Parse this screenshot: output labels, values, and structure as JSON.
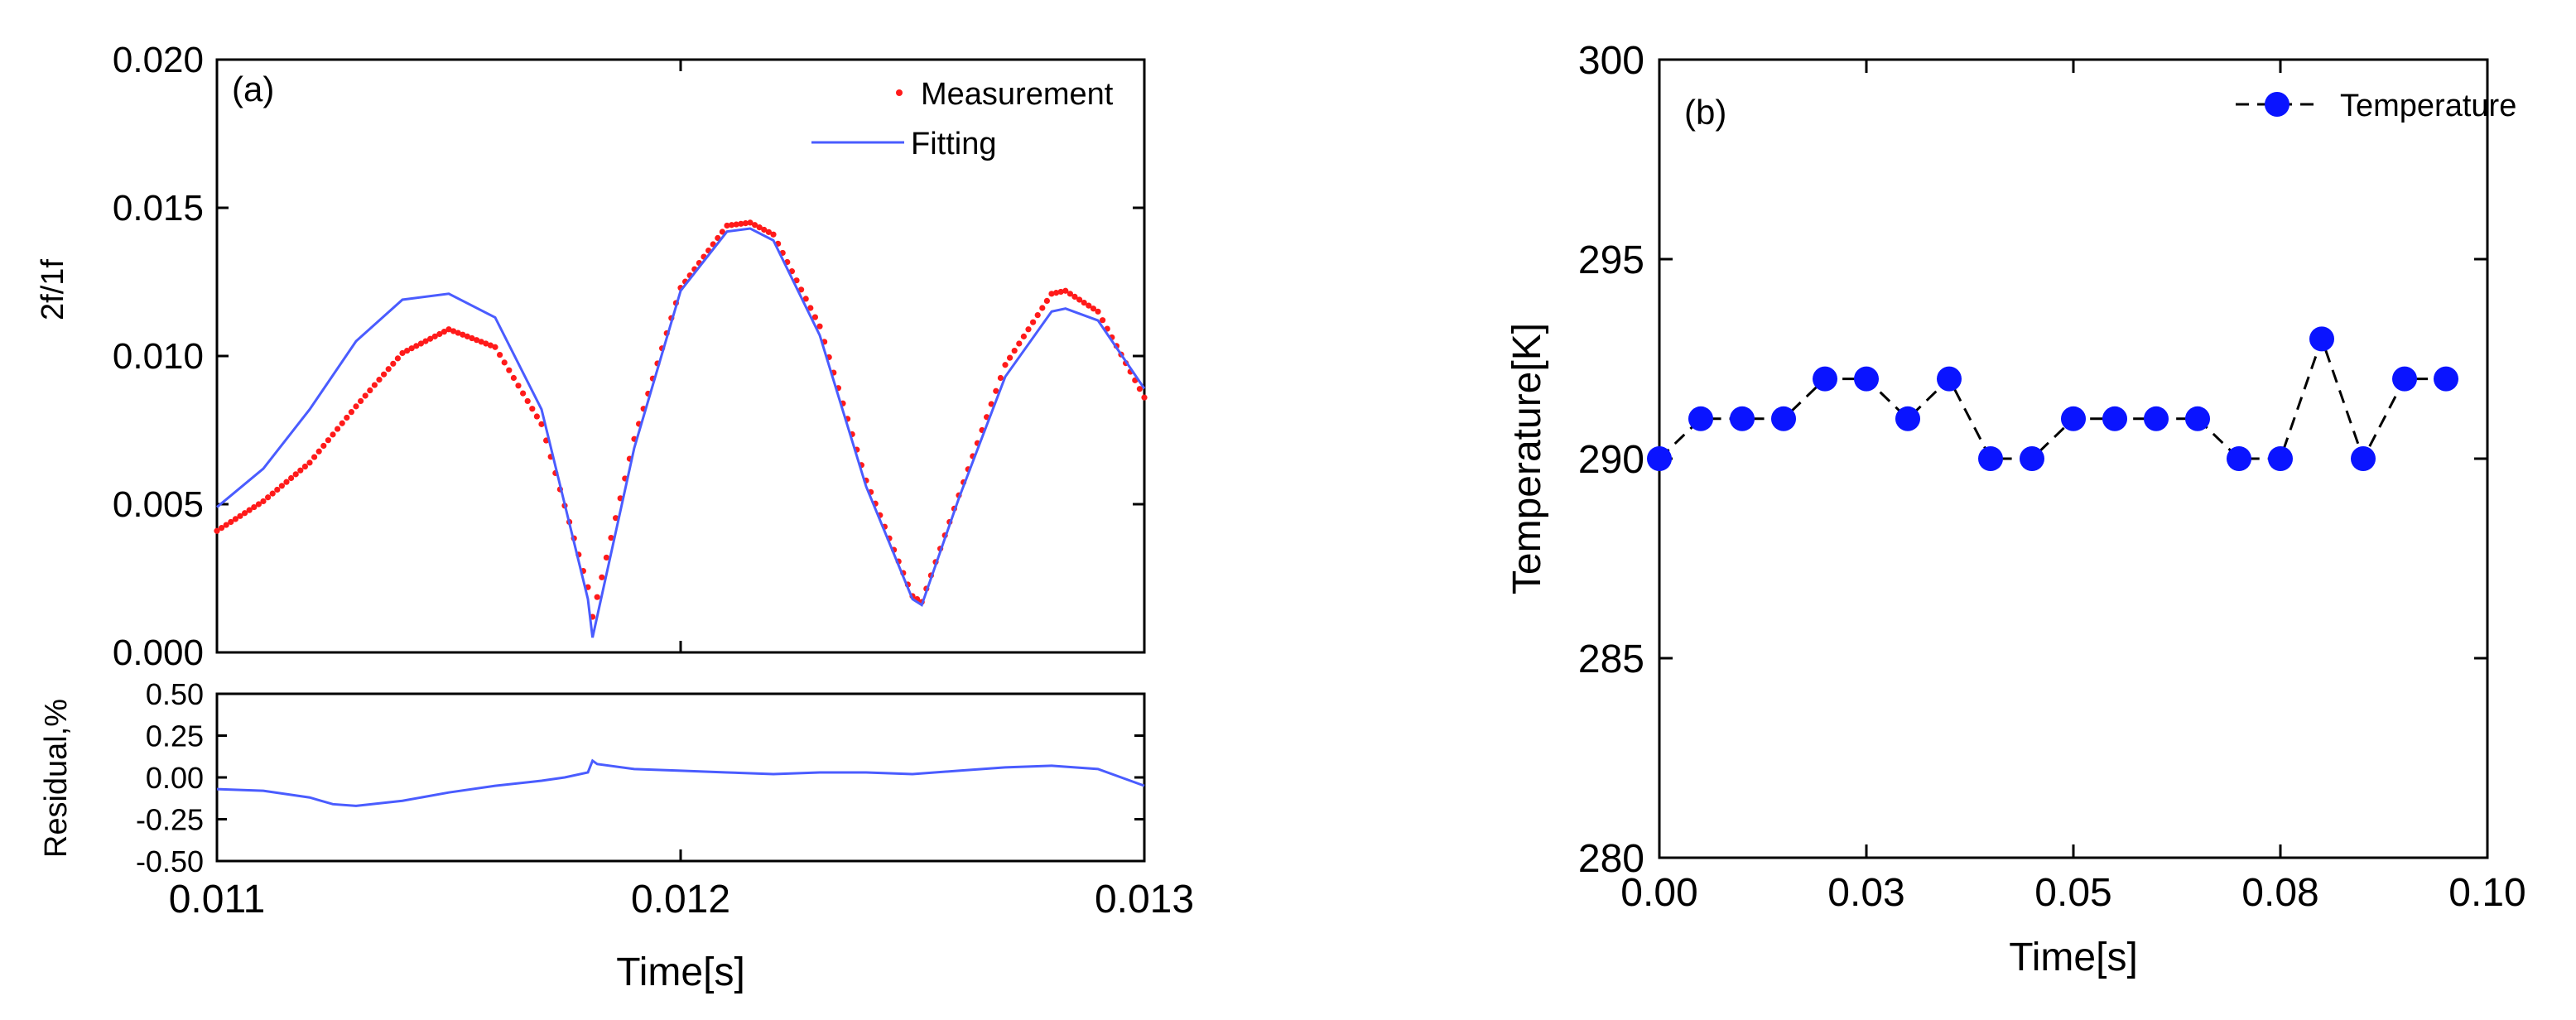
{
  "colors": {
    "measurement": "#ff1a1a",
    "fitting": "#4a5cff",
    "temperature": "#0a14ff",
    "axis": "#000000"
  },
  "chart_data": [
    {
      "type": "line",
      "panel_label": "(a)",
      "title": "",
      "xlabel": "Time[s]",
      "ylabel": "2f/1f",
      "xlim": [
        0.011,
        0.013
      ],
      "ylim": [
        0.0,
        0.02
      ],
      "x_ticks": [
        "0.011",
        "0.012",
        "0.013"
      ],
      "y_ticks": [
        "0.000",
        "0.005",
        "0.010",
        "0.015",
        "0.020"
      ],
      "legend": [
        "Measurement",
        "Fitting"
      ],
      "legend_position": "top-right",
      "series": [
        {
          "name": "Measurement",
          "style": "dots",
          "x": [
            0.011,
            0.0111,
            0.0112,
            0.0113,
            0.0114,
            0.0115,
            0.0116,
            0.0117,
            0.0118,
            0.01181,
            0.0119,
            0.012,
            0.0121,
            0.01215,
            0.0122,
            0.0123,
            0.0124,
            0.0125,
            0.01252,
            0.0126,
            0.0127,
            0.0128,
            0.01283,
            0.0129,
            0.013
          ],
          "y": [
            0.0041,
            0.0051,
            0.0064,
            0.0083,
            0.0101,
            0.0109,
            0.0103,
            0.0077,
            0.0022,
            0.0012,
            0.0072,
            0.0123,
            0.0144,
            0.0145,
            0.0141,
            0.011,
            0.0058,
            0.0019,
            0.0017,
            0.0053,
            0.0097,
            0.0121,
            0.0122,
            0.0115,
            0.0086
          ]
        },
        {
          "name": "Fitting",
          "style": "line",
          "x": [
            0.011,
            0.0111,
            0.0112,
            0.0113,
            0.0114,
            0.0115,
            0.0116,
            0.0117,
            0.0118,
            0.01181,
            0.0119,
            0.012,
            0.0121,
            0.01215,
            0.0122,
            0.0123,
            0.0124,
            0.0125,
            0.01252,
            0.0126,
            0.0127,
            0.0128,
            0.01283,
            0.0129,
            0.013
          ],
          "y": [
            0.0049,
            0.0062,
            0.0082,
            0.0105,
            0.0119,
            0.0121,
            0.0113,
            0.0082,
            0.0018,
            0.0005,
            0.0069,
            0.0122,
            0.0142,
            0.0143,
            0.0139,
            0.0107,
            0.0056,
            0.0018,
            0.0016,
            0.0052,
            0.0093,
            0.0115,
            0.0116,
            0.0112,
            0.0089
          ]
        }
      ]
    },
    {
      "type": "line",
      "title": "",
      "xlabel": "",
      "ylabel": "Residual,%",
      "xlim": [
        0.011,
        0.013
      ],
      "ylim": [
        -0.5,
        0.5
      ],
      "y_ticks": [
        "-0.50",
        "-0.25",
        "0.00",
        "0.25",
        "0.50"
      ],
      "series": [
        {
          "name": "Residual",
          "x": [
            0.011,
            0.0111,
            0.0112,
            0.01125,
            0.0113,
            0.0114,
            0.0115,
            0.0116,
            0.0117,
            0.01175,
            0.0118,
            0.01181,
            0.01182,
            0.0119,
            0.012,
            0.0121,
            0.0122,
            0.0123,
            0.0124,
            0.0125,
            0.0126,
            0.0127,
            0.0128,
            0.0129,
            0.013
          ],
          "y": [
            -0.07,
            -0.08,
            -0.12,
            -0.16,
            -0.17,
            -0.14,
            -0.09,
            -0.05,
            -0.02,
            0.0,
            0.03,
            0.1,
            0.08,
            0.05,
            0.04,
            0.03,
            0.02,
            0.03,
            0.03,
            0.02,
            0.04,
            0.06,
            0.07,
            0.05,
            -0.05
          ]
        }
      ]
    },
    {
      "type": "line",
      "panel_label": "(b)",
      "title": "",
      "xlabel": "Time[s]",
      "ylabel": "Temperature[K]",
      "xlim": [
        0.0,
        0.1
      ],
      "ylim": [
        280,
        300
      ],
      "x_ticks": [
        "0.00",
        "0.03",
        "0.05",
        "0.08",
        "0.10"
      ],
      "x_tick_values": [
        0.0,
        0.025,
        0.05,
        0.075,
        0.1
      ],
      "y_ticks": [
        "280",
        "285",
        "290",
        "295",
        "300"
      ],
      "legend": [
        "Temperature"
      ],
      "legend_position": "top-right",
      "series": [
        {
          "name": "Temperature",
          "style": "dashed-line-with-markers",
          "x": [
            0.0,
            0.005,
            0.01,
            0.015,
            0.02,
            0.025,
            0.03,
            0.035,
            0.04,
            0.045,
            0.05,
            0.055,
            0.06,
            0.065,
            0.07,
            0.075,
            0.08,
            0.085,
            0.09,
            0.095
          ],
          "y": [
            290,
            291,
            291,
            291,
            292,
            292,
            291,
            292,
            290,
            290,
            291,
            291,
            291,
            291,
            290,
            290,
            293,
            290,
            292,
            292
          ]
        }
      ]
    }
  ]
}
